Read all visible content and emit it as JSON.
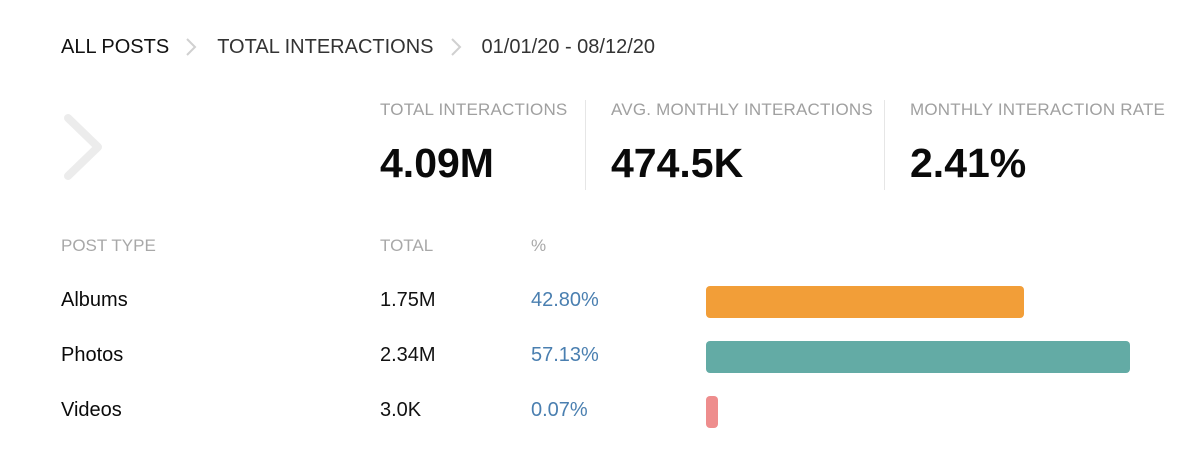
{
  "breadcrumb": {
    "items": [
      "ALL POSTS",
      "TOTAL INTERACTIONS",
      "01/01/20 - 08/12/20"
    ]
  },
  "colors": {
    "albums": "#f29e38",
    "photos": "#63aba5",
    "videos": "#ee8d8d",
    "percent_text": "#4a7fb0"
  },
  "stats": [
    {
      "label": "TOTAL INTERACTIONS",
      "value": "4.09M"
    },
    {
      "label": "AVG. MONTHLY INTERACTIONS",
      "value": "474.5K"
    },
    {
      "label": "MONTHLY INTERACTION RATE",
      "value": "2.41%"
    }
  ],
  "table": {
    "headers": {
      "type": "POST TYPE",
      "total": "TOTAL",
      "percent": "%"
    },
    "rows": [
      {
        "type": "Albums",
        "total": "1.75M",
        "percent": "42.80%",
        "share": 42.8
      },
      {
        "type": "Photos",
        "total": "2.34M",
        "percent": "57.13%",
        "share": 57.13
      },
      {
        "type": "Videos",
        "total": "3.0K",
        "percent": "0.07%",
        "share": 0.07
      }
    ]
  },
  "icons": {
    "back": "chevron-left-icon",
    "separator": "chevron-right-icon"
  }
}
